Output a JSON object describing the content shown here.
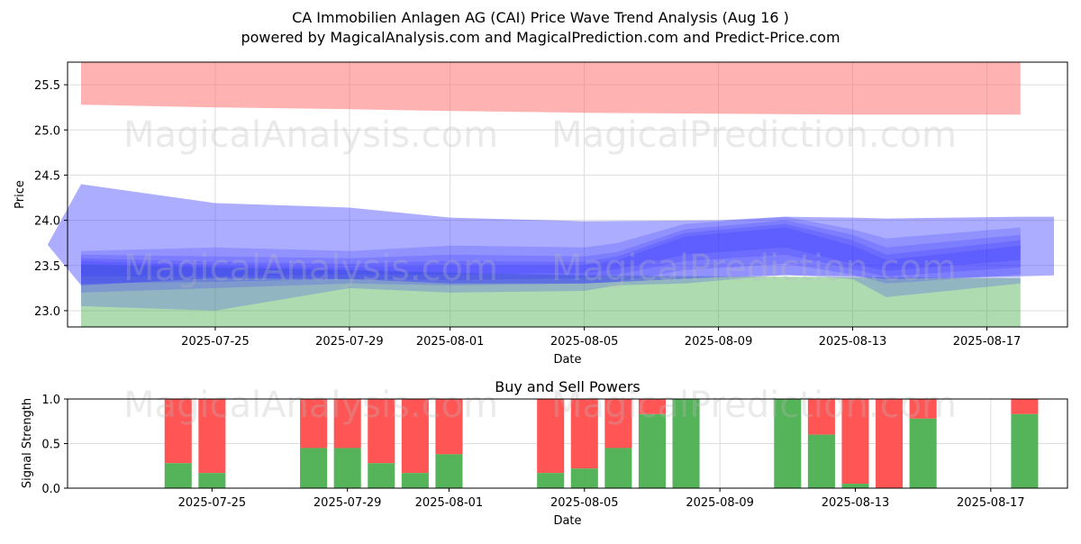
{
  "title": "CA Immobilien Anlagen AG (CAI) Price Wave Trend Analysis (Aug 16 )",
  "subtitle": "powered by MagicalAnalysis.com and MagicalPrediction.com and Predict-Price.com",
  "watermarks": [
    "MagicalAnalysis.com",
    "MagicalPrediction.com"
  ],
  "colors": {
    "upper_band": "#ff6666",
    "lower_band": "#4caf50",
    "wave": "#3333ff",
    "buy": "#4caf50",
    "sell": "#ff4c4c"
  },
  "chart_data": [
    {
      "type": "area",
      "name": "price-wave-trend",
      "xlabel": "Date",
      "ylabel": "Price",
      "xlim": [
        "2025-07-21",
        "2025-08-19"
      ],
      "ylim": [
        22.82,
        25.75
      ],
      "grid": true,
      "yticks": [
        23.0,
        23.5,
        24.0,
        24.5,
        25.0,
        25.5
      ],
      "xticks": [
        "2025-07-25",
        "2025-07-29",
        "2025-08-01",
        "2025-08-05",
        "2025-08-09",
        "2025-08-13",
        "2025-08-17"
      ],
      "upper_band": {
        "x": [
          "2025-07-21",
          "2025-07-25",
          "2025-07-29",
          "2025-08-01",
          "2025-08-05",
          "2025-08-09",
          "2025-08-13",
          "2025-08-18"
        ],
        "top": [
          25.75,
          25.75,
          25.75,
          25.75,
          25.75,
          25.75,
          25.75,
          25.75
        ],
        "bottom": [
          25.28,
          25.25,
          25.23,
          25.21,
          25.19,
          25.18,
          25.17,
          25.17
        ]
      },
      "lower_band": {
        "x": [
          "2025-07-21",
          "2025-07-25",
          "2025-07-29",
          "2025-08-01",
          "2025-08-05",
          "2025-08-09",
          "2025-08-13",
          "2025-08-18"
        ],
        "top": [
          23.51,
          23.48,
          23.45,
          23.42,
          23.39,
          23.38,
          23.37,
          23.36
        ],
        "bottom": [
          22.82,
          22.82,
          22.82,
          22.82,
          22.82,
          22.82,
          22.82,
          22.82
        ]
      },
      "wave_bands": [
        {
          "x": [
            "2025-07-20",
            "2025-07-21",
            "2025-07-25",
            "2025-07-29",
            "2025-08-01",
            "2025-08-05",
            "2025-08-09",
            "2025-08-11",
            "2025-08-13",
            "2025-08-14",
            "2025-08-18",
            "2025-08-19"
          ],
          "upper": [
            23.73,
            24.4,
            24.19,
            24.14,
            24.03,
            23.99,
            24.0,
            24.04,
            24.03,
            24.02,
            24.04,
            24.04
          ],
          "lower": [
            23.73,
            23.28,
            23.36,
            23.35,
            23.3,
            23.3,
            23.37,
            23.39,
            23.38,
            23.35,
            23.38,
            23.39
          ]
        },
        {
          "x": [
            "2025-07-21",
            "2025-07-25",
            "2025-07-29",
            "2025-08-01",
            "2025-08-05",
            "2025-08-06",
            "2025-08-08",
            "2025-08-11",
            "2025-08-13",
            "2025-08-14",
            "2025-08-18"
          ],
          "upper": [
            23.66,
            23.7,
            23.66,
            23.72,
            23.7,
            23.75,
            23.96,
            24.04,
            23.9,
            23.8,
            23.92
          ],
          "lower": [
            23.05,
            23.0,
            23.25,
            23.2,
            23.22,
            23.28,
            23.3,
            23.4,
            23.35,
            23.15,
            23.3
          ]
        },
        {
          "x": [
            "2025-07-21",
            "2025-07-25",
            "2025-07-29",
            "2025-08-01",
            "2025-08-05",
            "2025-08-06",
            "2025-08-08",
            "2025-08-11",
            "2025-08-13",
            "2025-08-14",
            "2025-08-18"
          ],
          "upper": [
            23.62,
            23.6,
            23.58,
            23.62,
            23.6,
            23.65,
            23.9,
            24.0,
            23.84,
            23.7,
            23.84
          ],
          "lower": [
            23.2,
            23.25,
            23.3,
            23.28,
            23.3,
            23.32,
            23.45,
            23.52,
            23.4,
            23.3,
            23.4
          ]
        },
        {
          "x": [
            "2025-07-21",
            "2025-07-25",
            "2025-07-29",
            "2025-08-01",
            "2025-08-05",
            "2025-08-06",
            "2025-08-08",
            "2025-08-11",
            "2025-08-13",
            "2025-08-14",
            "2025-08-18"
          ],
          "upper": [
            23.58,
            23.54,
            23.52,
            23.55,
            23.54,
            23.6,
            23.86,
            23.96,
            23.78,
            23.62,
            23.78
          ],
          "lower": [
            23.3,
            23.32,
            23.35,
            23.34,
            23.36,
            23.4,
            23.55,
            23.62,
            23.46,
            23.38,
            23.48
          ]
        },
        {
          "x": [
            "2025-07-21",
            "2025-07-25",
            "2025-07-29",
            "2025-08-01",
            "2025-08-05",
            "2025-08-06",
            "2025-08-08",
            "2025-08-11",
            "2025-08-13",
            "2025-08-14",
            "2025-08-18"
          ],
          "upper": [
            23.55,
            23.5,
            23.48,
            23.5,
            23.5,
            23.56,
            23.82,
            23.92,
            23.72,
            23.56,
            23.72
          ],
          "lower": [
            23.38,
            23.38,
            23.4,
            23.4,
            23.42,
            23.46,
            23.62,
            23.7,
            23.52,
            23.44,
            23.56
          ]
        }
      ]
    },
    {
      "type": "bar",
      "name": "buy-sell-powers",
      "title": "Buy and Sell Powers",
      "xlabel": "Date",
      "ylabel": "Signal Strength",
      "xlim": [
        "2025-07-21",
        "2025-08-19"
      ],
      "ylim": [
        0,
        1
      ],
      "yticks": [
        "0.0",
        "0.5",
        "1.0"
      ],
      "xticks": [
        "2025-07-25",
        "2025-07-29",
        "2025-08-01",
        "2025-08-05",
        "2025-08-09",
        "2025-08-13",
        "2025-08-17"
      ],
      "dates": [
        "2025-07-24",
        "2025-07-25",
        "2025-07-28",
        "2025-07-29",
        "2025-07-30",
        "2025-07-31",
        "2025-08-01",
        "2025-08-04",
        "2025-08-05",
        "2025-08-06",
        "2025-08-07",
        "2025-08-08",
        "2025-08-11",
        "2025-08-12",
        "2025-08-13",
        "2025-08-14",
        "2025-08-15",
        "2025-08-18"
      ],
      "buy": [
        0.28,
        0.17,
        0.45,
        0.45,
        0.28,
        0.17,
        0.38,
        0.17,
        0.22,
        0.45,
        0.83,
        1.0,
        1.0,
        0.6,
        0.05,
        0.0,
        0.78,
        0.83
      ]
    }
  ]
}
